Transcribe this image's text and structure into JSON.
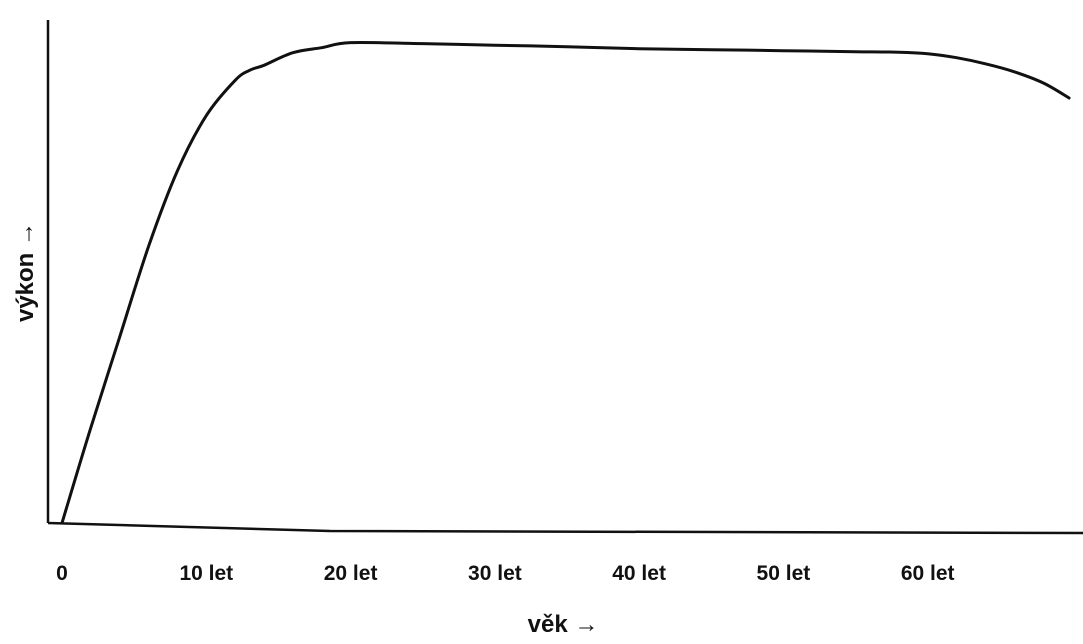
{
  "chart_data": {
    "type": "line",
    "title": "",
    "xlabel": "věk →",
    "ylabel": "výkon →",
    "xlim": [
      0,
      70
    ],
    "ylim": [
      0,
      100
    ],
    "x_ticks": [
      0,
      10,
      20,
      30,
      40,
      50,
      60
    ],
    "x_tick_labels": [
      "0",
      "10 let",
      "20 let",
      "30 let",
      "40 let",
      "50 let",
      "60 let"
    ],
    "y_ticks": [],
    "grid": false,
    "legend": "none",
    "series": [
      {
        "color": "#111111",
        "x": [
          0,
          2,
          4,
          6,
          8,
          10,
          12,
          13,
          14,
          16,
          18,
          20,
          25,
          30,
          35,
          40,
          45,
          50,
          55,
          58,
          60,
          62,
          64,
          66,
          68,
          69.8
        ],
        "y": [
          0,
          19,
          37,
          55,
          70,
          81,
          88,
          90,
          91,
          93.5,
          94.5,
          95.5,
          95.3,
          95,
          94.7,
          94.3,
          94.1,
          93.9,
          93.7,
          93.6,
          93.3,
          92.5,
          91.3,
          89.7,
          87.5,
          84.5
        ]
      }
    ]
  }
}
